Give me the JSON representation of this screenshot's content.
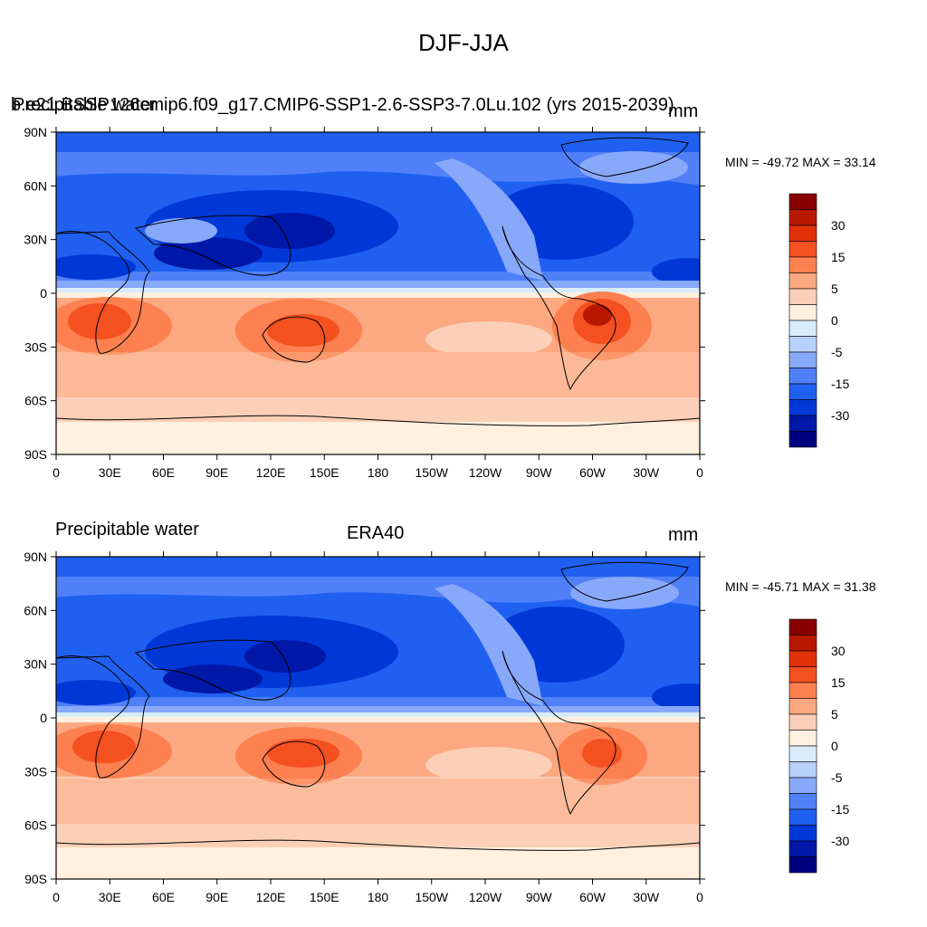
{
  "figure": {
    "title": "DJF-JJA"
  },
  "colors": [
    "#000080",
    "#0018a8",
    "#0038d8",
    "#2060f0",
    "#5080f8",
    "#88a8fa",
    "#b8d0fc",
    "#d8ecfc",
    "#fff0e0",
    "#fcd0b8",
    "#fca880",
    "#fc8050",
    "#f45020",
    "#e03008",
    "#b81800",
    "#880000"
  ],
  "colorbar": {
    "labels": [
      "30",
      "15",
      "5",
      "0",
      "-5",
      "-15",
      "-30"
    ]
  },
  "axes": {
    "lat_labels": [
      "90N",
      "60N",
      "30N",
      "0",
      "30S",
      "60S",
      "90S"
    ],
    "lon_labels": [
      "0",
      "30E",
      "60E",
      "90E",
      "120E",
      "150E",
      "180",
      "150W",
      "120W",
      "90W",
      "60W",
      "30W",
      "0"
    ]
  },
  "panels": [
    {
      "left_title": "Precipitable water",
      "center_title": "b.e21.BSSP126cmip6.f09_g17.CMIP6-SSP1-2.6-SSP3-7.0Lu.102 (yrs 2015-2039)",
      "units": "mm",
      "stats": "MIN = -49.72 MAX =  33.14"
    },
    {
      "left_title": "Precipitable water",
      "center_title": "ERA40",
      "units": "mm",
      "stats": "MIN = -45.71 MAX =  31.38"
    }
  ]
}
